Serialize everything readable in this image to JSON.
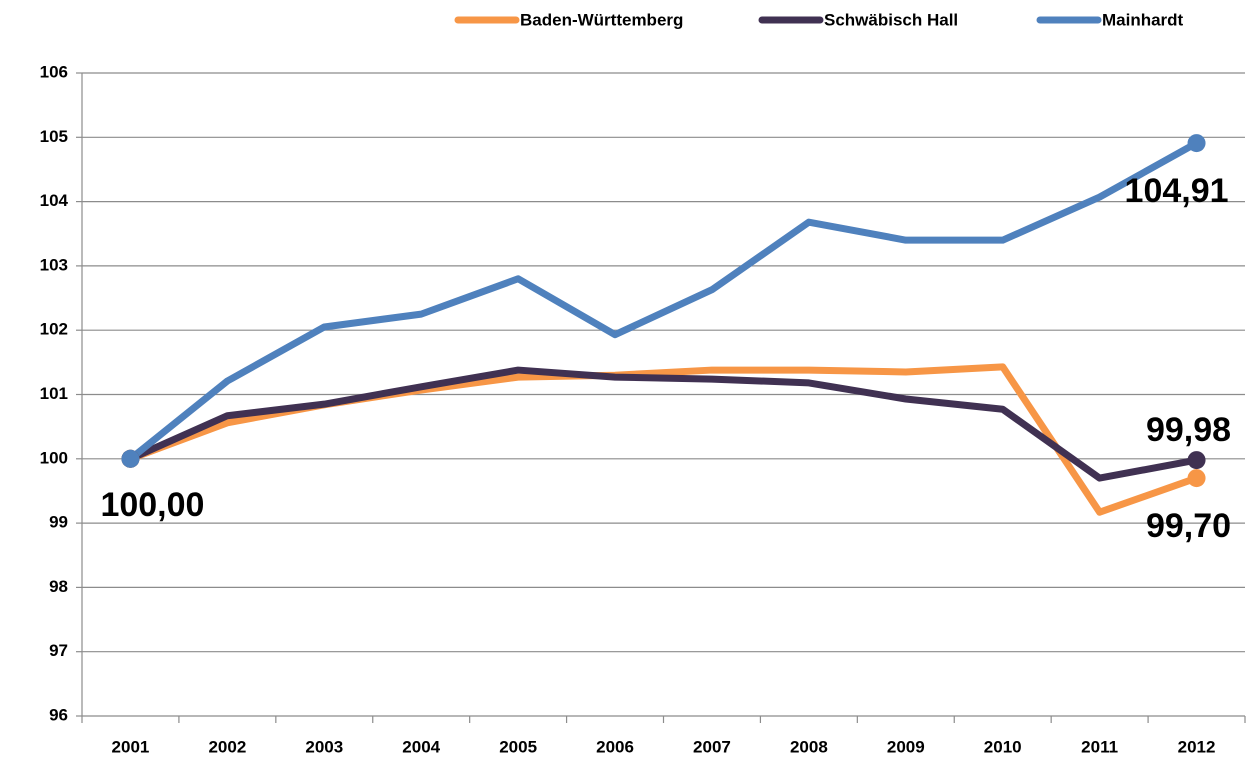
{
  "chart_data": {
    "type": "line",
    "categories": [
      "2001",
      "2002",
      "2003",
      "2004",
      "2005",
      "2006",
      "2007",
      "2008",
      "2009",
      "2010",
      "2011",
      "2012"
    ],
    "series": [
      {
        "name": "Baden-Württemberg",
        "color": "#f79646",
        "values": [
          100,
          100.56,
          100.84,
          101.07,
          101.27,
          101.3,
          101.38,
          101.38,
          101.35,
          101.43,
          99.17,
          99.7
        ],
        "value_labels": [
          "100,00",
          null,
          null,
          null,
          null,
          null,
          null,
          null,
          null,
          null,
          null,
          "99,70"
        ]
      },
      {
        "name": "Schwäbisch Hall",
        "color": "#403152",
        "values": [
          100,
          100.67,
          100.85,
          101.12,
          101.38,
          101.27,
          101.24,
          101.18,
          100.93,
          100.77,
          99.7,
          99.98
        ],
        "value_labels": [
          null,
          null,
          null,
          null,
          null,
          null,
          null,
          null,
          null,
          null,
          null,
          "99,98"
        ]
      },
      {
        "name": "Mainhardt",
        "color": "#4f81bd",
        "values": [
          100,
          101.21,
          102.05,
          102.25,
          102.8,
          101.93,
          102.63,
          103.68,
          103.4,
          103.4,
          104.07,
          104.91
        ],
        "value_labels": [
          null,
          null,
          null,
          null,
          null,
          null,
          null,
          null,
          null,
          null,
          null,
          "104,91"
        ]
      }
    ],
    "ylim": [
      96,
      106
    ],
    "yticks": [
      96,
      97,
      98,
      99,
      100,
      101,
      102,
      103,
      104,
      105,
      106
    ],
    "grid": true,
    "legend": "top-right"
  }
}
